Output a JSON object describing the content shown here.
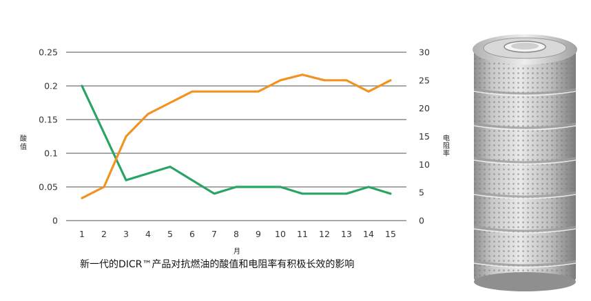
{
  "caption": "新一代的DICR™产品对抗燃油的酸值和电阻率有积极长效的影响",
  "colors": {
    "acid_series": "#2aa464",
    "resistivity_series": "#f2921f",
    "gridline": "#8a8a8a",
    "background": "#ffffff"
  },
  "photo": {
    "icon": "filter-cartridge-icon"
  },
  "chart_data": {
    "type": "line",
    "xlabel": "月",
    "ylabel_left": "酸值",
    "ylabel_right": "电阻率",
    "x": [
      1,
      2,
      3,
      4,
      5,
      6,
      7,
      8,
      9,
      10,
      11,
      12,
      13,
      14,
      15
    ],
    "ylim_left": [
      0,
      0.25
    ],
    "ylim_right": [
      0,
      30
    ],
    "yticks_left": [
      "0",
      "0.05",
      "0.1",
      "0.15",
      "0.2",
      "0.25"
    ],
    "yticks_right": [
      "0",
      "5",
      "10",
      "15",
      "20",
      "25",
      "30"
    ],
    "grid": true,
    "legend": "none",
    "series": [
      {
        "axis": "left",
        "color": "#2aa464",
        "values": [
          0.2,
          0.13,
          0.06,
          0.07,
          0.08,
          0.06,
          0.04,
          0.05,
          0.05,
          0.05,
          0.04,
          0.04,
          0.04,
          0.05,
          0.04
        ]
      },
      {
        "axis": "right",
        "color": "#f2921f",
        "values": [
          4,
          6,
          15,
          19,
          21,
          23,
          23,
          23,
          23,
          25,
          26,
          25,
          25,
          23,
          25
        ]
      }
    ]
  }
}
